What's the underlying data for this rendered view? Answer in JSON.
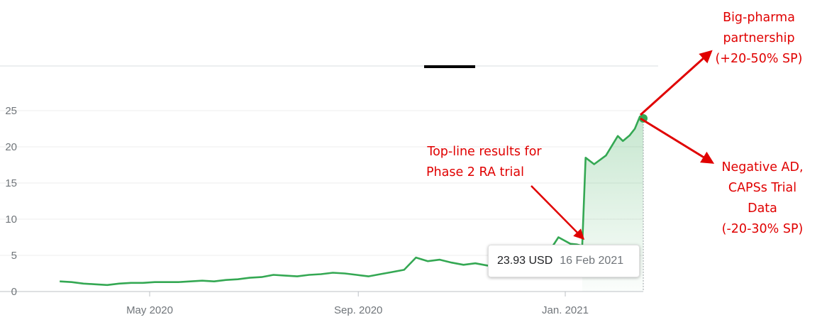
{
  "chart_data": {
    "type": "area",
    "title": "",
    "xlabel": "",
    "ylabel": "",
    "ylim": [
      0,
      27
    ],
    "xlim": [
      "2020-03-09",
      "2021-02-16"
    ],
    "y_ticks": [
      0,
      5,
      10,
      15,
      20,
      25
    ],
    "x_ticks": [
      {
        "label": "May 2020",
        "date": "2020-05-01"
      },
      {
        "label": "Sep. 2020",
        "date": "2020-09-01"
      },
      {
        "label": "Jan. 2021",
        "date": "2021-01-01"
      }
    ],
    "grid": true,
    "line_color": "#34a853",
    "fill_color": "#34a853",
    "series": [
      {
        "x": [
          "2020-03-09",
          "2020-03-16",
          "2020-03-23",
          "2020-03-30",
          "2020-04-06",
          "2020-04-13",
          "2020-04-20",
          "2020-04-27",
          "2020-05-04",
          "2020-05-11",
          "2020-05-18",
          "2020-05-25",
          "2020-06-01",
          "2020-06-08",
          "2020-06-15",
          "2020-06-22",
          "2020-06-29",
          "2020-07-06",
          "2020-07-13",
          "2020-07-20",
          "2020-07-27",
          "2020-08-03",
          "2020-08-10",
          "2020-08-17",
          "2020-08-24",
          "2020-08-31",
          "2020-09-07",
          "2020-09-14",
          "2020-09-21",
          "2020-09-28",
          "2020-10-05",
          "2020-10-12",
          "2020-10-19",
          "2020-10-26",
          "2020-11-02",
          "2020-11-09",
          "2020-11-16",
          "2020-11-23",
          "2020-11-30",
          "2020-12-07",
          "2020-12-14",
          "2020-12-21",
          "2020-12-28",
          "2021-01-04",
          "2021-01-08",
          "2021-01-11",
          "2021-01-13",
          "2021-01-18",
          "2021-01-25",
          "2021-02-01",
          "2021-02-04",
          "2021-02-08",
          "2021-02-11",
          "2021-02-14",
          "2021-02-16"
        ],
        "values": [
          1.4,
          1.3,
          1.1,
          1.0,
          0.9,
          1.1,
          1.2,
          1.2,
          1.3,
          1.3,
          1.3,
          1.4,
          1.5,
          1.4,
          1.6,
          1.7,
          1.9,
          2.0,
          2.3,
          2.2,
          2.1,
          2.3,
          2.4,
          2.6,
          2.5,
          2.3,
          2.1,
          2.4,
          2.7,
          3.0,
          4.7,
          4.2,
          4.4,
          4.0,
          3.7,
          3.9,
          3.6,
          3.5,
          3.6,
          3.4,
          3.8,
          5.0,
          7.5,
          6.6,
          6.5,
          6.3,
          18.5,
          17.6,
          18.8,
          21.5,
          20.8,
          21.6,
          22.5,
          24.2,
          23.93
        ]
      }
    ],
    "tooltip": {
      "value": "23.93 USD",
      "date": "16 Feb 2021"
    },
    "annotations": [
      {
        "lines": [
          "Top-line results for",
          "Phase 2 RA trial"
        ]
      },
      {
        "lines": [
          "Big-pharma",
          "partnership",
          "(+20-50% SP)"
        ]
      },
      {
        "lines": [
          "Negative AD,",
          "CAPSs Trial",
          "Data",
          "(-20-30% SP)"
        ]
      }
    ],
    "arrow_color": "#e00000"
  }
}
